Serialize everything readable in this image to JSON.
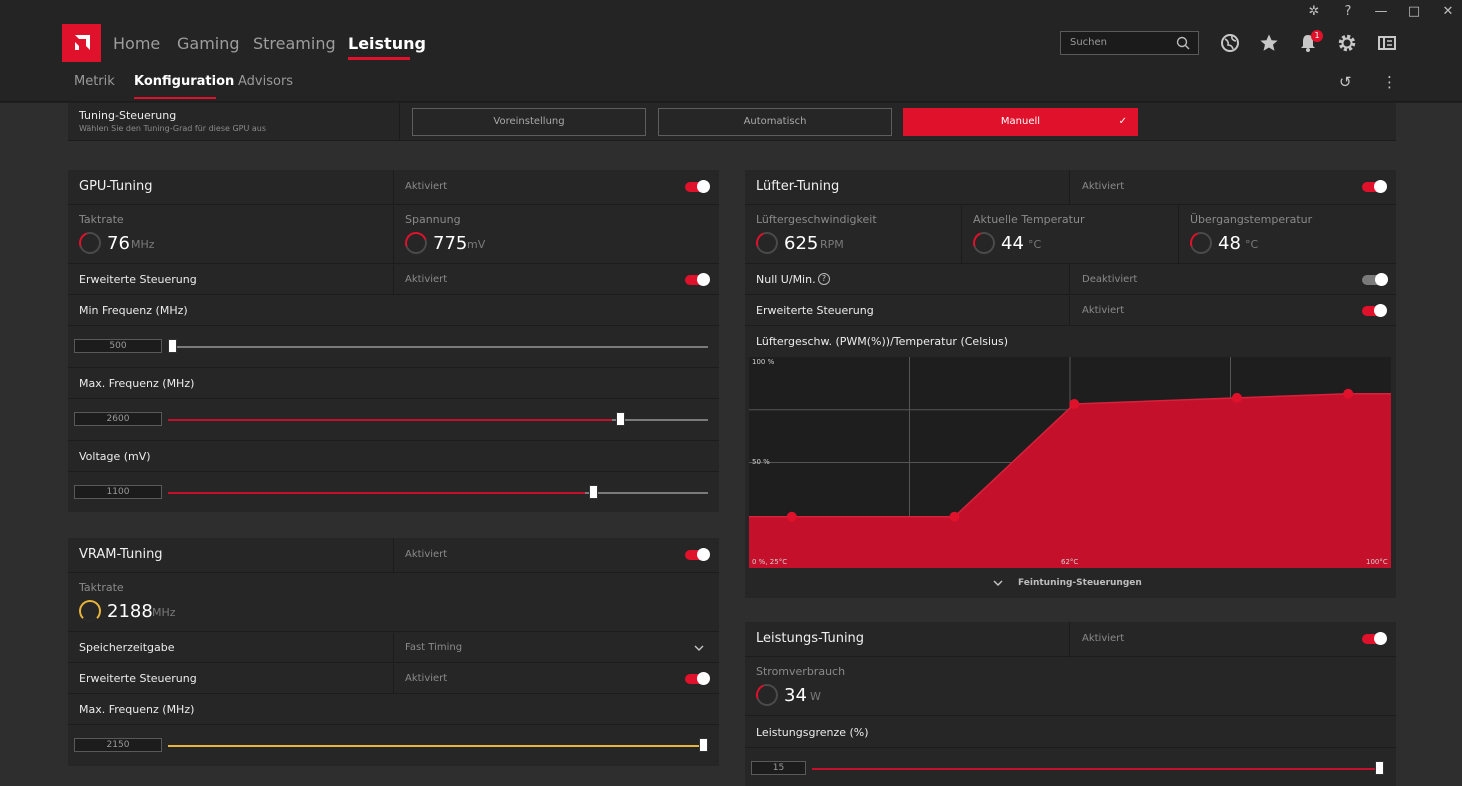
{
  "nav": {
    "tabs": [
      "Home",
      "Gaming",
      "Streaming",
      "Leistung"
    ],
    "active": "Leistung"
  },
  "search": {
    "placeholder": "Suchen"
  },
  "notifications": {
    "count": "1"
  },
  "subnav": {
    "tabs": [
      "Metrik",
      "Konfiguration",
      "Advisors"
    ],
    "active": "Konfiguration"
  },
  "tuning_control": {
    "title": "Tuning-Steuerung",
    "subtitle": "Wählen Sie den Tuning-Grad für diese GPU aus",
    "options": [
      "Voreinstellung",
      "Automatisch",
      "Manuell"
    ],
    "selected": "Manuell",
    "check": "✓"
  },
  "gpu_tuning": {
    "title": "GPU-Tuning",
    "status": "Aktiviert",
    "enabled": true,
    "clock_label": "Taktrate",
    "clock_value": "76",
    "clock_unit": "MHz",
    "voltage_label": "Spannung",
    "voltage_value": "775",
    "voltage_unit": "mV",
    "advanced_label": "Erweiterte Steuerung",
    "advanced_status": "Aktiviert",
    "min_freq_label": "Min Frequenz (MHz)",
    "min_freq_value": "500",
    "min_freq_pos": 0.0,
    "max_freq_label": "Max. Frequenz (MHz)",
    "max_freq_value": "2600",
    "max_freq_pos": 0.83,
    "voltage_set_label": "Voltage (mV)",
    "voltage_set_value": "1100",
    "voltage_set_pos": 0.78
  },
  "vram_tuning": {
    "title": "VRAM-Tuning",
    "status": "Aktiviert",
    "clock_label": "Taktrate",
    "clock_value": "2188",
    "clock_unit": "MHz",
    "timing_label": "Speicherzeitgabe",
    "timing_value": "Fast Timing",
    "advanced_label": "Erweiterte Steuerung",
    "advanced_status": "Aktiviert",
    "max_freq_label": "Max. Frequenz (MHz)",
    "max_freq_value": "2150",
    "max_freq_pos": 1.0
  },
  "fan_tuning": {
    "title": "Lüfter-Tuning",
    "status": "Aktiviert",
    "speed_label": "Lüftergeschwindigkeit",
    "speed_value": "625",
    "speed_unit": "RPM",
    "temp_label": "Aktuelle Temperatur",
    "temp_value": "44",
    "temp_unit": "°C",
    "junction_label": "Übergangstemperatur",
    "junction_value": "48",
    "junction_unit": "°C",
    "zero_rpm_label": "Null U/Min.",
    "zero_rpm_status": "Deaktiviert",
    "advanced_label": "Erweiterte Steuerung",
    "advanced_status": "Aktiviert",
    "curve_label": "Lüftergeschw. (PWM(%))/Temperatur (Celsius)",
    "fine_tuning_label": "Feintuning-Steuerungen"
  },
  "chart_data": {
    "type": "area",
    "title": "Lüftergeschw. (PWM(%))/Temperatur (Celsius)",
    "y_ticks": [
      "100 %",
      "50 %",
      "0 %, 25°C"
    ],
    "x_ticks": [
      "62°C",
      "100°C"
    ],
    "xlim": [
      25,
      100
    ],
    "ylim": [
      0,
      100
    ],
    "x": [
      30,
      49,
      63,
      82,
      95
    ],
    "y": [
      25,
      25,
      80,
      83,
      85
    ],
    "color": "#c4102a"
  },
  "power_tuning": {
    "title": "Leistungs-Tuning",
    "status": "Aktiviert",
    "power_label": "Stromverbrauch",
    "power_value": "34",
    "power_unit": "W",
    "limit_label": "Leistungsgrenze (%)",
    "limit_value": "15",
    "limit_pos": 1.0
  },
  "colors": {
    "accent": "#e0112b",
    "vram_accent": "#e9b43b",
    "panel": "#262626"
  }
}
